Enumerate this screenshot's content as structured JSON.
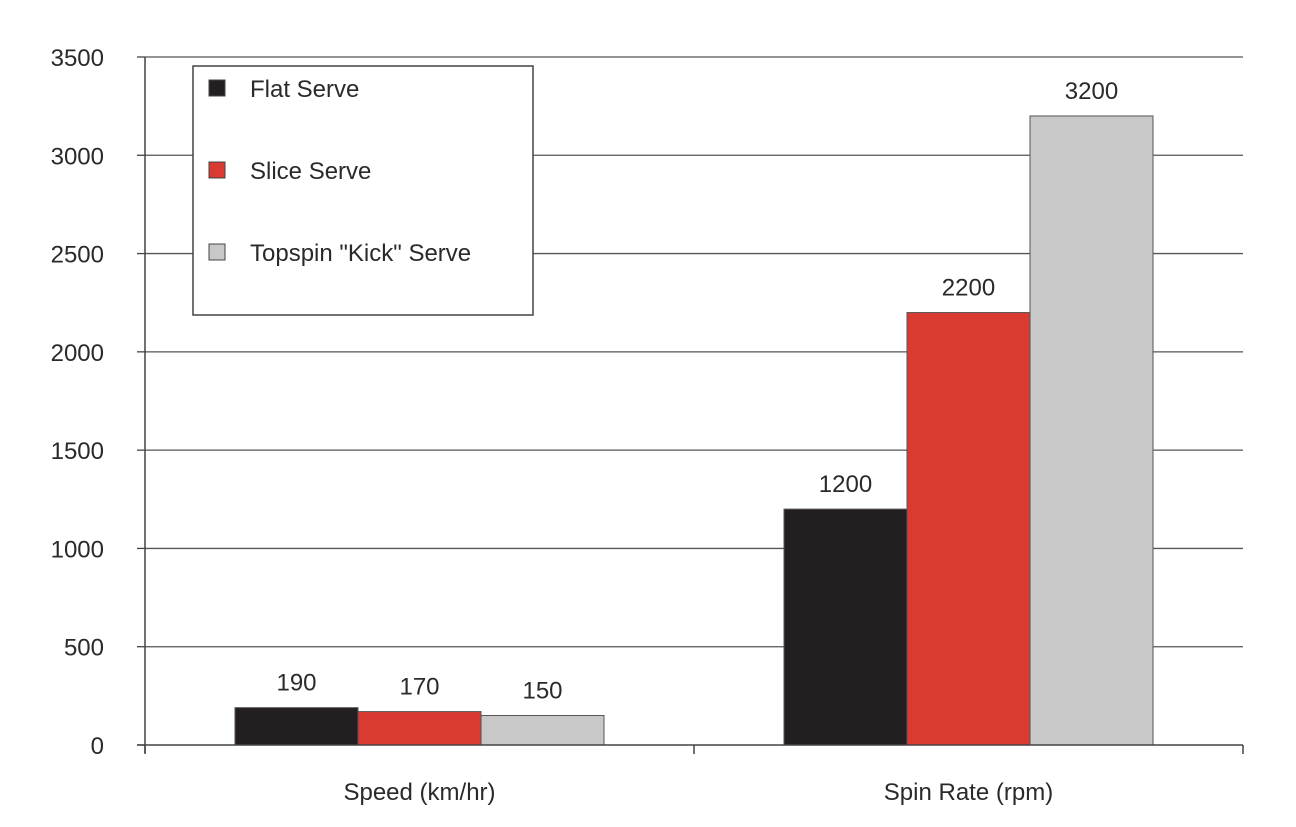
{
  "chart_data": {
    "type": "bar",
    "title": "",
    "xlabel": "",
    "ylabel": "",
    "categories": [
      "Speed (km/hr)",
      "Spin Rate (rpm)"
    ],
    "series": [
      {
        "name": "Flat Serve",
        "color": "#231f20",
        "values": [
          190,
          1200
        ]
      },
      {
        "name": "Slice Serve",
        "color": "#d93a32",
        "values": [
          170,
          2200
        ]
      },
      {
        "name": "Topspin \"Kick\" Serve",
        "color": "#c8c8c9",
        "values": [
          150,
          3200
        ]
      }
    ],
    "ylim": [
      0,
      3500
    ],
    "yticks": [
      0,
      500,
      1000,
      1500,
      2000,
      2500,
      3000,
      3500
    ],
    "grid": true,
    "legend_position": "top-left",
    "data_labels": true
  }
}
